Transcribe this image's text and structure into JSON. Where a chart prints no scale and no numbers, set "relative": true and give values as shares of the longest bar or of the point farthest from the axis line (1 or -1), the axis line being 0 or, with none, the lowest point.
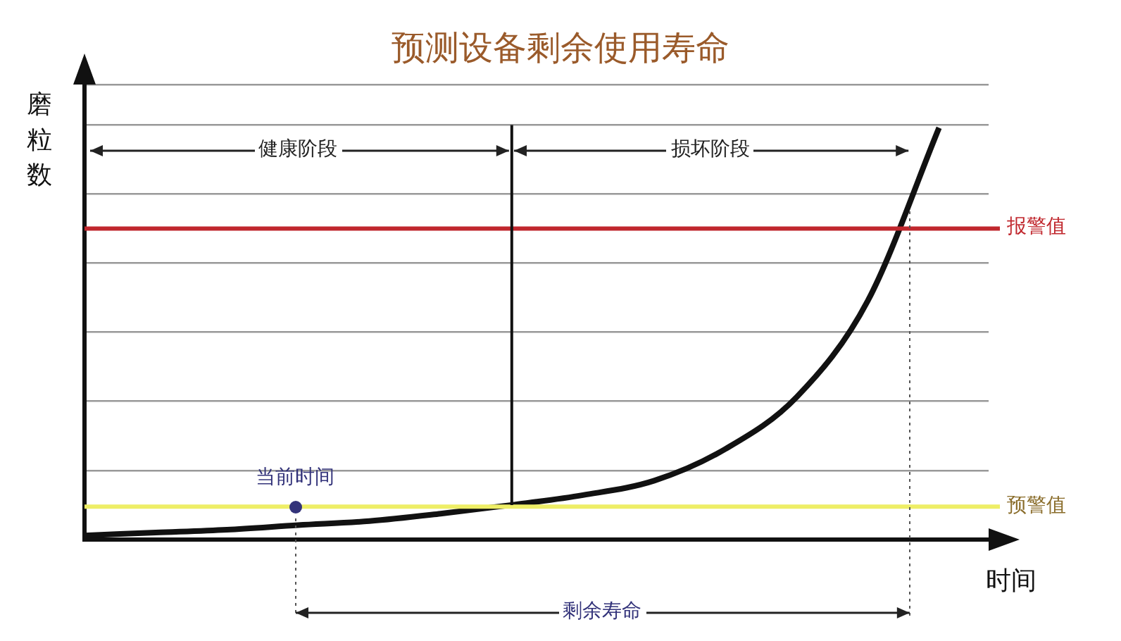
{
  "chart_data": {
    "type": "line",
    "title": "预测设备剩余使用寿命",
    "xlabel": "时间",
    "ylabel": "磨粒数",
    "relative": true,
    "grid": "y",
    "categories": [
      null,
      null,
      null,
      null,
      null,
      null,
      null,
      null,
      null,
      null,
      null,
      null,
      null
    ],
    "series": [
      {
        "color": "#111111",
        "values": [
          0.01,
          0.017,
          0.024,
          0.035,
          0.045,
          0.063,
          0.084,
          0.108,
          0.143,
          0.22,
          0.346,
          0.58,
          1
        ]
      }
    ],
    "ref_lines": [
      {
        "axis": "y",
        "value": 0.755,
        "label": "报警值",
        "color": "#c0272d"
      },
      {
        "axis": "y",
        "value": 0.08,
        "label": "预警值",
        "color": "#eeee66"
      }
    ],
    "annotations": [
      "健康阶段",
      "损坏阶段",
      "当前时间",
      "剩余寿命"
    ],
    "marker": "none",
    "line_style": "solid",
    "legend": false
  }
}
